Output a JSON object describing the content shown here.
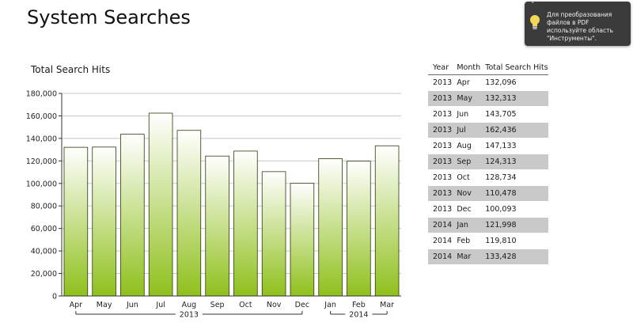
{
  "page": {
    "title": "System Searches"
  },
  "tooltip": {
    "close_glyph": "˄",
    "text": "Для преобразования файлов в PDF используйте область \"Инструменты\".",
    "icon": "lightbulb-icon"
  },
  "table": {
    "headers": [
      "Year",
      "Month",
      "Total Search Hits"
    ],
    "rows": [
      [
        "2013",
        "Apr",
        "132,096"
      ],
      [
        "2013",
        "May",
        "132,313"
      ],
      [
        "2013",
        "Jun",
        "143,705"
      ],
      [
        "2013",
        "Jul",
        "162,436"
      ],
      [
        "2013",
        "Aug",
        "147,133"
      ],
      [
        "2013",
        "Sep",
        "124,313"
      ],
      [
        "2013",
        "Oct",
        "128,734"
      ],
      [
        "2013",
        "Nov",
        "110,478"
      ],
      [
        "2013",
        "Dec",
        "100,093"
      ],
      [
        "2014",
        "Jan",
        "121,998"
      ],
      [
        "2014",
        "Feb",
        "119,810"
      ],
      [
        "2014",
        "Mar",
        "133,428"
      ]
    ]
  },
  "colors": {
    "bar_top": "#ffffff",
    "bar_bottom": "#8fc01c",
    "bar_stroke": "#2b3a08",
    "row_alt": "#c9c9c9",
    "tooltip_bg": "#3b3b3b"
  },
  "chart_data": {
    "type": "bar",
    "title": "Total Search Hits",
    "categories": [
      "Apr",
      "May",
      "Jun",
      "Jul",
      "Aug",
      "Sep",
      "Oct",
      "Nov",
      "Dec",
      "Jan",
      "Feb",
      "Mar"
    ],
    "values": [
      132096,
      132313,
      143705,
      162436,
      147133,
      124313,
      128734,
      110478,
      100093,
      121998,
      119810,
      133428
    ],
    "groups": [
      {
        "label": "2013",
        "from": 0,
        "to": 8
      },
      {
        "label": "2014",
        "from": 9,
        "to": 11
      }
    ],
    "yticks": [
      0,
      20000,
      40000,
      60000,
      80000,
      100000,
      120000,
      140000,
      160000,
      180000
    ],
    "ytick_labels": [
      "0",
      "20,000",
      "40,000",
      "60,000",
      "80,000",
      "100,000",
      "120,000",
      "140,000",
      "160,000",
      "180,000"
    ],
    "ylim": [
      0,
      180000
    ],
    "xlabel": "",
    "ylabel": "",
    "grid": true
  }
}
